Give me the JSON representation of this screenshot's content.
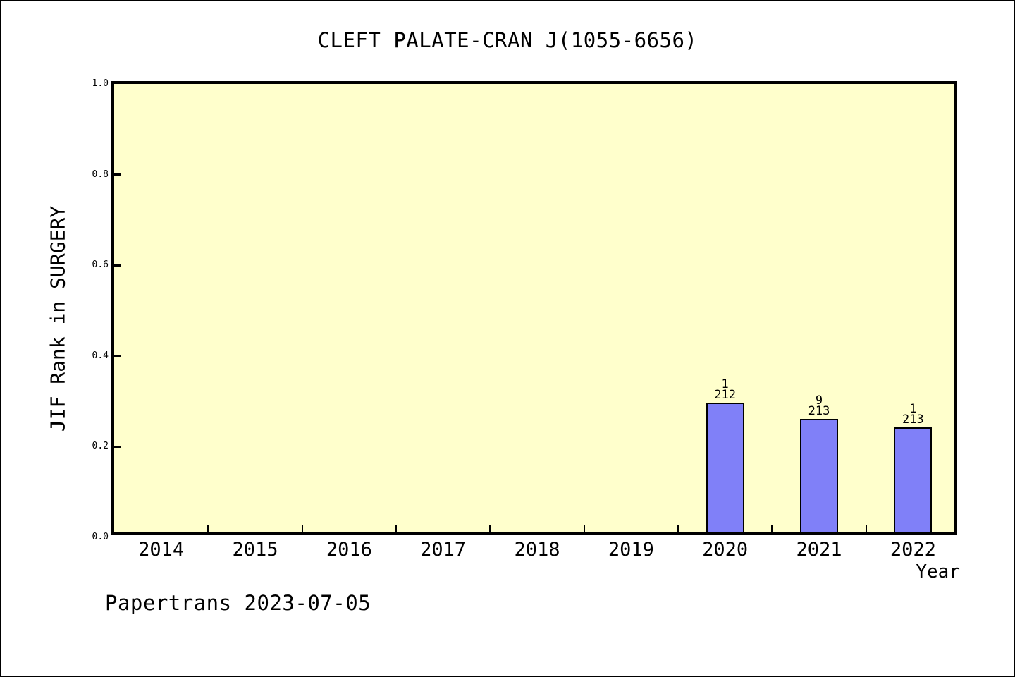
{
  "chart_data": {
    "type": "bar",
    "title": "CLEFT PALATE-CRAN J(1055-6656)",
    "xlabel": "Year",
    "ylabel": "JIF Rank in SURGERY",
    "ylim": [
      0.0,
      1.0
    ],
    "ytick_values": [
      0.0,
      0.2,
      0.4,
      0.6,
      0.8,
      1.0
    ],
    "ytick_labels": [
      "0.0",
      "0.2",
      "0.4",
      "0.6",
      "0.8",
      "1.0"
    ],
    "categories": [
      "2014",
      "2015",
      "2016",
      "2017",
      "2018",
      "2019",
      "2020",
      "2021",
      "2022"
    ],
    "grid": false,
    "legend": null,
    "plot_background": "#ffffcc",
    "bar_color": "#8080f8",
    "bar_border_color": "#000000",
    "bars": [
      {
        "category": "2020",
        "value": 0.285,
        "rank": "1",
        "total": "212"
      },
      {
        "category": "2021",
        "value": 0.249,
        "rank": "9",
        "total": "213"
      },
      {
        "category": "2022",
        "value": 0.23,
        "rank": "1",
        "total": "213"
      }
    ],
    "footer": "Papertrans 2023-07-05"
  }
}
